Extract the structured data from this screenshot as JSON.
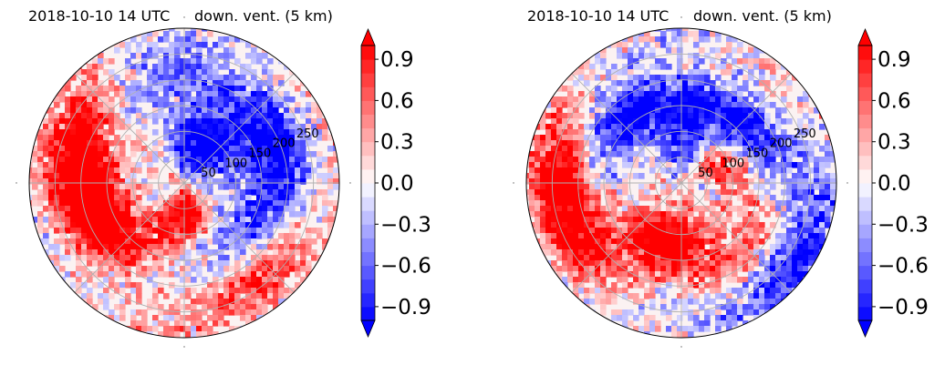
{
  "chart_data": [
    {
      "type": "heatmap",
      "projection": "polar",
      "title_left": "2018-10-10 14 UTC",
      "title_right": "down. vent. (5 km)",
      "title_left_color": "#0000ff",
      "radial_ticks": [
        "50",
        "100",
        "150",
        "200",
        "250"
      ],
      "radial_tick_values": [
        50,
        100,
        150,
        200,
        250
      ],
      "r_max": 300,
      "colorbar": {
        "ticks": [
          "0.9",
          "0.6",
          "0.3",
          "0.0",
          "−0.3",
          "−0.6",
          "−0.9"
        ],
        "tick_values": [
          0.9,
          0.6,
          0.3,
          0.0,
          -0.3,
          -0.6,
          -0.9
        ],
        "vmin": -1.0,
        "vmax": 1.0,
        "extend": "both",
        "cmap": "bwr"
      },
      "field": {
        "positive_regions": [
          {
            "angle_deg": 200,
            "r": 170,
            "weight": 1.0
          },
          {
            "angle_deg": 270,
            "r": 60,
            "weight": 0.9
          },
          {
            "angle_deg": 160,
            "r": 220,
            "weight": 0.8
          },
          {
            "angle_deg": 320,
            "r": 240,
            "weight": 0.6
          }
        ],
        "negative_regions": [
          {
            "angle_deg": 60,
            "r": 80,
            "weight": 1.0
          },
          {
            "angle_deg": 20,
            "r": 200,
            "weight": 0.7
          },
          {
            "angle_deg": 330,
            "r": 150,
            "weight": 0.6
          },
          {
            "angle_deg": 100,
            "r": 200,
            "weight": 0.5
          }
        ]
      }
    },
    {
      "type": "heatmap",
      "projection": "polar",
      "title_left": "2018-10-10 14 UTC",
      "title_right": "down. vent. (5 km)",
      "title_left_color": "#0000ff",
      "radial_ticks": [
        "50",
        "100",
        "150",
        "200",
        "250"
      ],
      "radial_tick_values": [
        50,
        100,
        150,
        200,
        250
      ],
      "r_max": 300,
      "colorbar": {
        "ticks": [
          "0.9",
          "0.6",
          "0.3",
          "0.0",
          "−0.3",
          "−0.6",
          "−0.9"
        ],
        "tick_values": [
          0.9,
          0.6,
          0.3,
          0.0,
          -0.3,
          -0.6,
          -0.9
        ],
        "vmin": -1.0,
        "vmax": 1.0,
        "extend": "both",
        "cmap": "bwr"
      },
      "field": {
        "positive_regions": [
          {
            "angle_deg": 190,
            "r": 230,
            "weight": 1.0
          },
          {
            "angle_deg": 250,
            "r": 110,
            "weight": 0.9
          },
          {
            "angle_deg": 20,
            "r": 90,
            "weight": 0.7
          },
          {
            "angle_deg": 300,
            "r": 180,
            "weight": 0.5
          }
        ],
        "negative_regions": [
          {
            "angle_deg": 120,
            "r": 160,
            "weight": 0.9
          },
          {
            "angle_deg": 40,
            "r": 150,
            "weight": 0.8
          },
          {
            "angle_deg": 320,
            "r": 260,
            "weight": 0.7
          },
          {
            "angle_deg": 80,
            "r": 60,
            "weight": 0.5
          }
        ]
      }
    }
  ]
}
